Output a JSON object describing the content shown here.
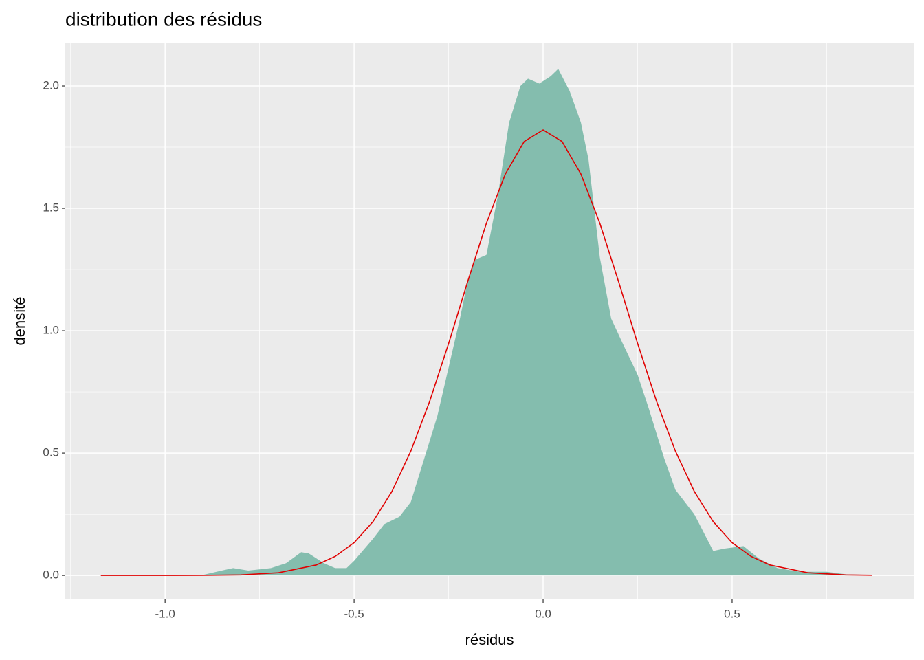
{
  "chart_data": {
    "type": "density",
    "title": "distribution des résidus",
    "x_label": "résidus",
    "y_label": "densité",
    "xlim": [
      -1.264,
      0.982
    ],
    "ylim": [
      -0.098,
      2.177
    ],
    "xticks": [
      {
        "value": -1.0,
        "label": "-1.0"
      },
      {
        "value": -0.5,
        "label": "-0.5"
      },
      {
        "value": 0.0,
        "label": "0.0"
      },
      {
        "value": 0.5,
        "label": "0.5"
      }
    ],
    "yticks": [
      {
        "value": 0.0,
        "label": "0.0"
      },
      {
        "value": 0.5,
        "label": "0.5"
      },
      {
        "value": 1.0,
        "label": "1.0"
      },
      {
        "value": 1.5,
        "label": "1.5"
      },
      {
        "value": 2.0,
        "label": "2.0"
      }
    ],
    "x_minor_grid": [
      -1.25,
      -0.75,
      -0.25,
      0.25,
      0.75
    ],
    "y_minor_grid": [
      0.25,
      0.75,
      1.25,
      1.75
    ],
    "grid": true,
    "series": [
      {
        "type": "area",
        "color": "#84bdae",
        "x": [
          -1.17,
          -1.13,
          -1.0,
          -0.9,
          -0.85,
          -0.82,
          -0.78,
          -0.72,
          -0.68,
          -0.64,
          -0.62,
          -0.58,
          -0.55,
          -0.52,
          -0.5,
          -0.45,
          -0.42,
          -0.38,
          -0.35,
          -0.32,
          -0.28,
          -0.25,
          -0.22,
          -0.2,
          -0.18,
          -0.15,
          -0.12,
          -0.09,
          -0.06,
          -0.04,
          -0.01,
          0.02,
          0.04,
          0.07,
          0.1,
          0.12,
          0.15,
          0.18,
          0.21,
          0.25,
          0.28,
          0.32,
          0.35,
          0.4,
          0.45,
          0.48,
          0.53,
          0.57,
          0.62,
          0.68,
          0.75,
          0.8,
          0.87
        ],
        "values": [
          0.003,
          0.002,
          0.0,
          0.002,
          0.02,
          0.03,
          0.02,
          0.03,
          0.05,
          0.095,
          0.09,
          0.05,
          0.03,
          0.03,
          0.06,
          0.15,
          0.21,
          0.24,
          0.3,
          0.45,
          0.65,
          0.85,
          1.05,
          1.2,
          1.29,
          1.31,
          1.55,
          1.85,
          2.0,
          2.03,
          2.01,
          2.04,
          2.07,
          1.98,
          1.85,
          1.7,
          1.3,
          1.05,
          0.95,
          0.82,
          0.68,
          0.48,
          0.35,
          0.25,
          0.1,
          0.11,
          0.12,
          0.07,
          0.03,
          0.015,
          0.015,
          0.005,
          0.002
        ]
      },
      {
        "type": "line",
        "color": "#e00000",
        "x": [
          -1.17,
          -1.0,
          -0.9,
          -0.8,
          -0.7,
          -0.6,
          -0.55,
          -0.5,
          -0.45,
          -0.4,
          -0.35,
          -0.3,
          -0.25,
          -0.2,
          -0.15,
          -0.1,
          -0.05,
          0.0,
          0.05,
          0.1,
          0.15,
          0.2,
          0.25,
          0.3,
          0.35,
          0.4,
          0.45,
          0.5,
          0.55,
          0.6,
          0.7,
          0.8,
          0.87
        ],
        "values": [
          0.0,
          0.0,
          0.0004,
          0.0023,
          0.011,
          0.043,
          0.078,
          0.134,
          0.22,
          0.343,
          0.508,
          0.712,
          0.948,
          1.199,
          1.439,
          1.64,
          1.773,
          1.82,
          1.773,
          1.64,
          1.439,
          1.199,
          0.948,
          0.712,
          0.508,
          0.343,
          0.22,
          0.134,
          0.078,
          0.043,
          0.011,
          0.0023,
          0.0007
        ]
      }
    ]
  }
}
